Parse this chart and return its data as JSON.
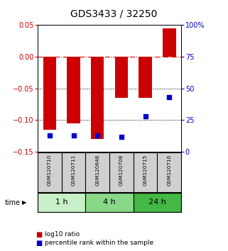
{
  "title": "GDS3433 / 32250",
  "samples": [
    "GSM120710",
    "GSM120711",
    "GSM120648",
    "GSM120708",
    "GSM120715",
    "GSM120716"
  ],
  "log10_ratio": [
    -0.115,
    -0.105,
    -0.13,
    -0.065,
    -0.065,
    0.045
  ],
  "percentile_rank": [
    13,
    13,
    13,
    12,
    28,
    43
  ],
  "time_groups": [
    {
      "label": "1 h",
      "start": 0,
      "end": 2,
      "color": "#c8f0c8"
    },
    {
      "label": "4 h",
      "start": 2,
      "end": 4,
      "color": "#88d888"
    },
    {
      "label": "24 h",
      "start": 4,
      "end": 6,
      "color": "#44b844"
    }
  ],
  "bar_color": "#cc0000",
  "dot_color": "#0000cc",
  "ylim_left": [
    -0.15,
    0.05
  ],
  "ylim_right": [
    0,
    100
  ],
  "yticks_left": [
    -0.15,
    -0.1,
    -0.05,
    0,
    0.05
  ],
  "yticks_right": [
    0,
    25,
    50,
    75,
    100
  ],
  "hline_color": "#cc0000",
  "dotted_lines": [
    -0.05,
    -0.1
  ],
  "bar_width": 0.55,
  "dot_size": 20,
  "bg_color": "#ffffff",
  "sample_box_color": "#d0d0d0",
  "legend_items": [
    "log10 ratio",
    "percentile rank within the sample"
  ],
  "title_fontsize": 10
}
